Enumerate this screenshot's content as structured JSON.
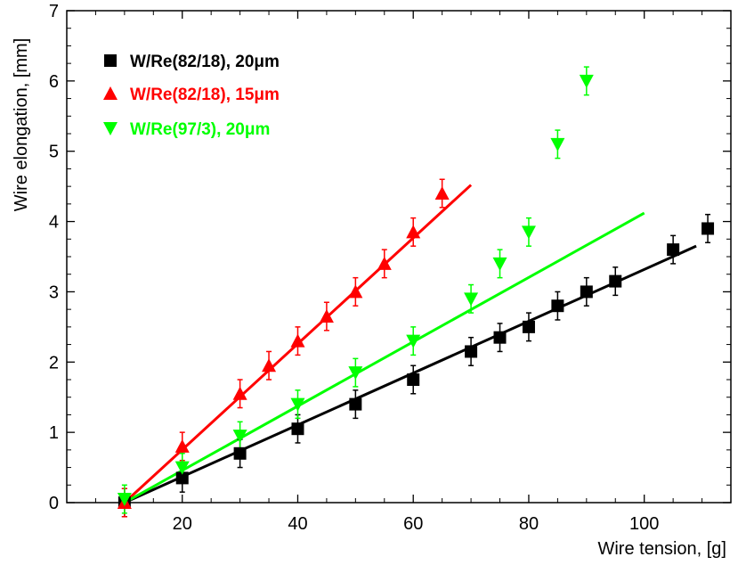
{
  "chart_data": {
    "type": "scatter",
    "xlabel": "Wire tension, [g]",
    "ylabel": "Wire elongation, [mm]",
    "xlim": [
      0,
      115
    ],
    "ylim": [
      0,
      7
    ],
    "xticks": [
      20,
      40,
      60,
      80,
      100
    ],
    "yticks": [
      0,
      1,
      2,
      3,
      4,
      5,
      6,
      7
    ],
    "grid": false,
    "legend_position": "top-left",
    "series": [
      {
        "name": "W/Re(82/18), 20μm",
        "color": "#000000",
        "marker": "square",
        "x": [
          10,
          20,
          30,
          40,
          50,
          60,
          70,
          75,
          80,
          85,
          90,
          95,
          105,
          111
        ],
        "y": [
          0.0,
          0.35,
          0.7,
          1.05,
          1.4,
          1.75,
          2.15,
          2.35,
          2.5,
          2.8,
          3.0,
          3.15,
          3.6,
          3.9
        ],
        "yerr": 0.2,
        "fit": {
          "x": [
            10,
            109
          ],
          "y": [
            0.0,
            3.65
          ]
        }
      },
      {
        "name": "W/Re(82/18), 15μm",
        "color": "#ff0000",
        "marker": "triangle-up",
        "x": [
          10,
          20,
          30,
          35,
          40,
          45,
          50,
          55,
          60,
          65
        ],
        "y": [
          0.0,
          0.8,
          1.55,
          1.95,
          2.3,
          2.65,
          3.0,
          3.4,
          3.85,
          4.4
        ],
        "yerr": 0.2,
        "fit": {
          "x": [
            10,
            70
          ],
          "y": [
            0.0,
            4.52
          ]
        }
      },
      {
        "name": "W/Re(97/3),  20μm",
        "color": "#00ff00",
        "marker": "triangle-down",
        "x": [
          10,
          20,
          30,
          40,
          50,
          60,
          70,
          75,
          80,
          85,
          90
        ],
        "y": [
          0.05,
          0.5,
          0.95,
          1.4,
          1.85,
          2.3,
          2.9,
          3.4,
          3.85,
          5.1,
          6.0
        ],
        "yerr": 0.2,
        "fit": {
          "x": [
            10,
            100
          ],
          "y": [
            0.0,
            4.12
          ]
        }
      }
    ]
  }
}
